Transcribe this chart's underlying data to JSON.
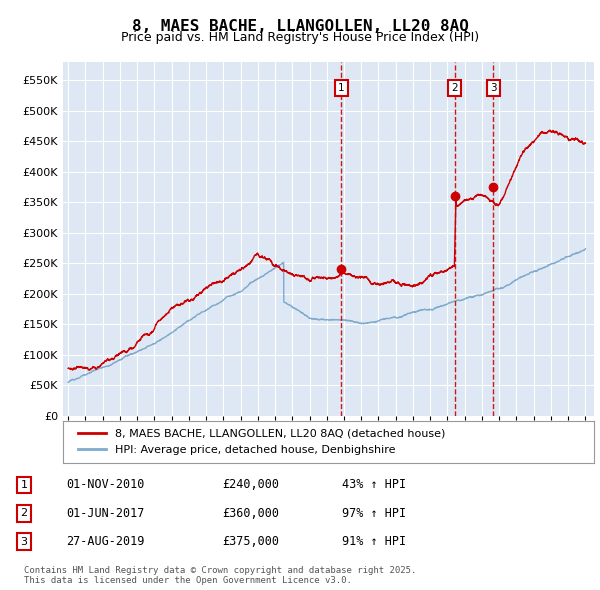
{
  "title": "8, MAES BACHE, LLANGOLLEN, LL20 8AQ",
  "subtitle": "Price paid vs. HM Land Registry's House Price Index (HPI)",
  "bg_color": "#dde8f4",
  "red_color": "#cc0000",
  "blue_color": "#7faacc",
  "legend_label_red": "8, MAES BACHE, LLANGOLLEN, LL20 8AQ (detached house)",
  "legend_label_blue": "HPI: Average price, detached house, Denbighshire",
  "footer": "Contains HM Land Registry data © Crown copyright and database right 2025.\nThis data is licensed under the Open Government Licence v3.0.",
  "transactions": [
    {
      "num": 1,
      "date": "01-NOV-2010",
      "price": 240000,
      "hpi_pct": "43%",
      "x_year": 2010.83
    },
    {
      "num": 2,
      "date": "01-JUN-2017",
      "price": 360000,
      "hpi_pct": "97%",
      "x_year": 2017.42
    },
    {
      "num": 3,
      "date": "27-AUG-2019",
      "price": 375000,
      "hpi_pct": "91%",
      "x_year": 2019.65
    }
  ],
  "ylim": [
    0,
    580000
  ],
  "yticks": [
    0,
    50000,
    100000,
    150000,
    200000,
    250000,
    300000,
    350000,
    400000,
    450000,
    500000,
    550000
  ],
  "ytick_labels": [
    "£0",
    "£50K",
    "£100K",
    "£150K",
    "£200K",
    "£250K",
    "£300K",
    "£350K",
    "£400K",
    "£450K",
    "£500K",
    "£550K"
  ],
  "xlim_start": 1994.7,
  "xlim_end": 2025.5,
  "figsize": [
    6.0,
    5.9
  ],
  "dpi": 100
}
